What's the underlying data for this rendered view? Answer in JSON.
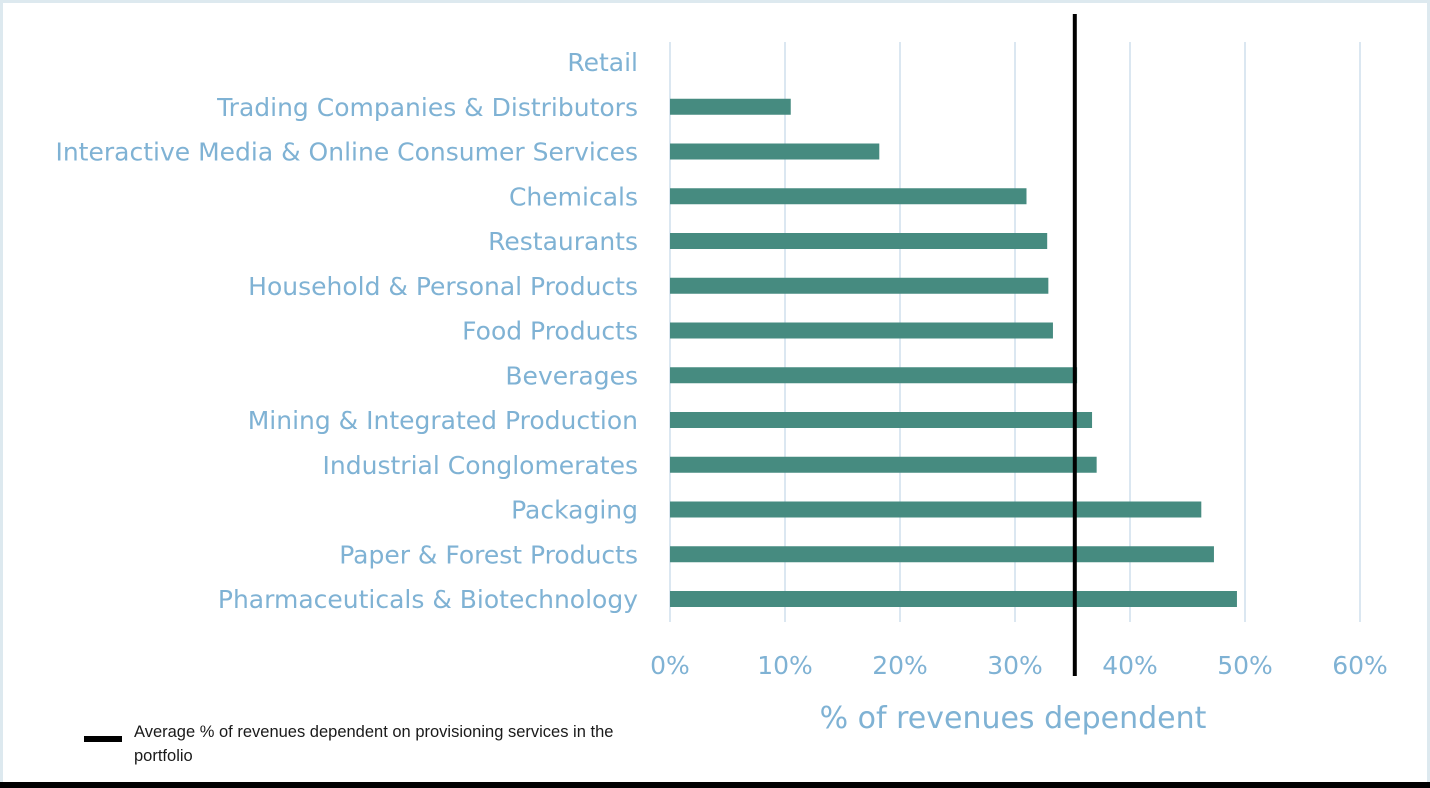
{
  "chart_data": {
    "type": "bar",
    "orientation": "horizontal",
    "categories": [
      "Retail",
      "Trading Companies & Distributors",
      "Interactive Media & Online Consumer Services",
      "Chemicals",
      "Restaurants",
      "Household & Personal Products",
      "Food Products",
      "Beverages",
      "Mining & Integrated Production",
      "Industrial Conglomerates",
      "Packaging",
      "Paper & Forest Products",
      "Pharmaceuticals & Biotechnology"
    ],
    "values": [
      0,
      10.5,
      18.2,
      31,
      32.8,
      32.9,
      33.3,
      35.4,
      36.7,
      37.1,
      46.2,
      47.3,
      49.3
    ],
    "value_unit": "%",
    "xlabel": "% of revenues dependent",
    "ylabel": "",
    "xlim": [
      0,
      60
    ],
    "ticks": [
      0,
      10,
      20,
      30,
      40,
      50,
      60
    ],
    "tick_labels": [
      "0%",
      "10%",
      "20%",
      "30%",
      "40%",
      "50%",
      "60%"
    ],
    "grid": true,
    "average_line": {
      "value": 35.2,
      "legend_label": "Average % of revenues dependent on provisioning services in the portfolio"
    },
    "legend_position": "bottom-left",
    "colors": {
      "bar": "#468b80",
      "labels": "#7fb2d4",
      "grid": "#dbe7f1",
      "average_line": "#000000"
    }
  }
}
